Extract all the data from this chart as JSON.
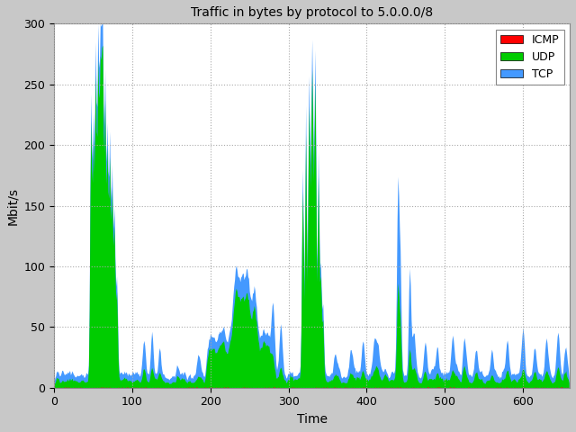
{
  "title": "Traffic in bytes by protocol to 5.0.0.0/8",
  "xlabel": "Time",
  "ylabel": "Mbit/s",
  "xlim": [
    0,
    660
  ],
  "ylim": [
    0,
    300
  ],
  "xticks": [
    0,
    100,
    200,
    300,
    400,
    500,
    600
  ],
  "yticks": [
    0,
    50,
    100,
    150,
    200,
    250,
    300
  ],
  "fig_bg_color": "#c8c8c8",
  "plot_bg_color": "#ffffff",
  "grid_color": "#aaaaaa",
  "icmp_color": "#ff0000",
  "udp_color": "#00cc00",
  "tcp_color": "#4499ff",
  "n_points": 660,
  "seed": 7
}
